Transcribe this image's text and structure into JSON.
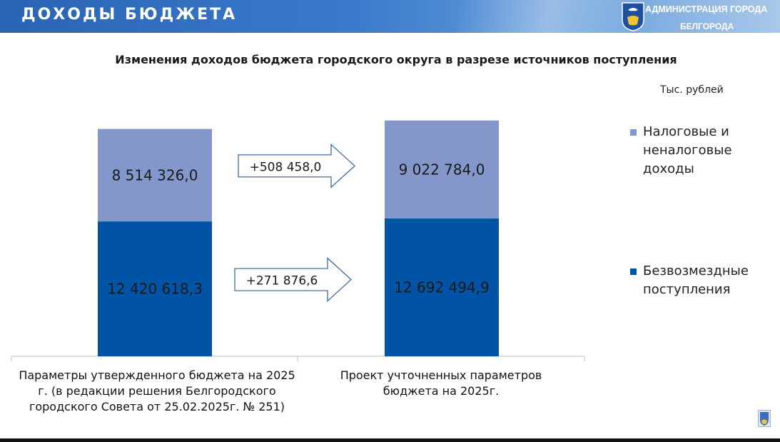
{
  "header": {
    "title": "ДОХОДЫ БЮДЖЕТА",
    "admin_line1": "АДМИНИСТРАЦИЯ ГОРОДА",
    "admin_line2": "БЕЛГОРОДА"
  },
  "colors": {
    "tax": "#8497cb",
    "grants": "#0053a5",
    "header": "#2a64b4"
  },
  "chart_data": {
    "type": "bar",
    "stacked": true,
    "title": "Изменения доходов бюджета городского округа в разрезе источников поступления",
    "unit": "Тыс. рублей",
    "categories": [
      "Параметры утвержденного бюджета на 2025 г. (в редакции решения Белгородского городского Совета от 25.02.2025г. № 251)",
      "Проект учточненных параметров бюджета на 2025г."
    ],
    "series": [
      {
        "name": "Безвозмездные поступления",
        "values": [
          12420618.3,
          12692494.9
        ],
        "labels": [
          "12 420 618,3",
          "12 692 494,9"
        ],
        "color": "#0053a5"
      },
      {
        "name": "Налоговые и неналоговые доходы",
        "values": [
          8514326.0,
          9022784.0
        ],
        "labels": [
          "8 514 326,0",
          "9 022 784,0"
        ],
        "color": "#8497cb"
      }
    ],
    "changes": [
      {
        "series": "Налоговые и неналоговые доходы",
        "label": "+508 458,0"
      },
      {
        "series": "Безвозмездные поступления",
        "label": "+271 876,6"
      }
    ],
    "legend": {
      "position": "right",
      "items": [
        {
          "name": "Налоговые и неналоговые доходы",
          "color": "#8497cb"
        },
        {
          "name": "Безвозмездные поступления",
          "color": "#0053a5"
        }
      ]
    },
    "ylim": [
      0,
      23800000
    ],
    "grid": false
  }
}
